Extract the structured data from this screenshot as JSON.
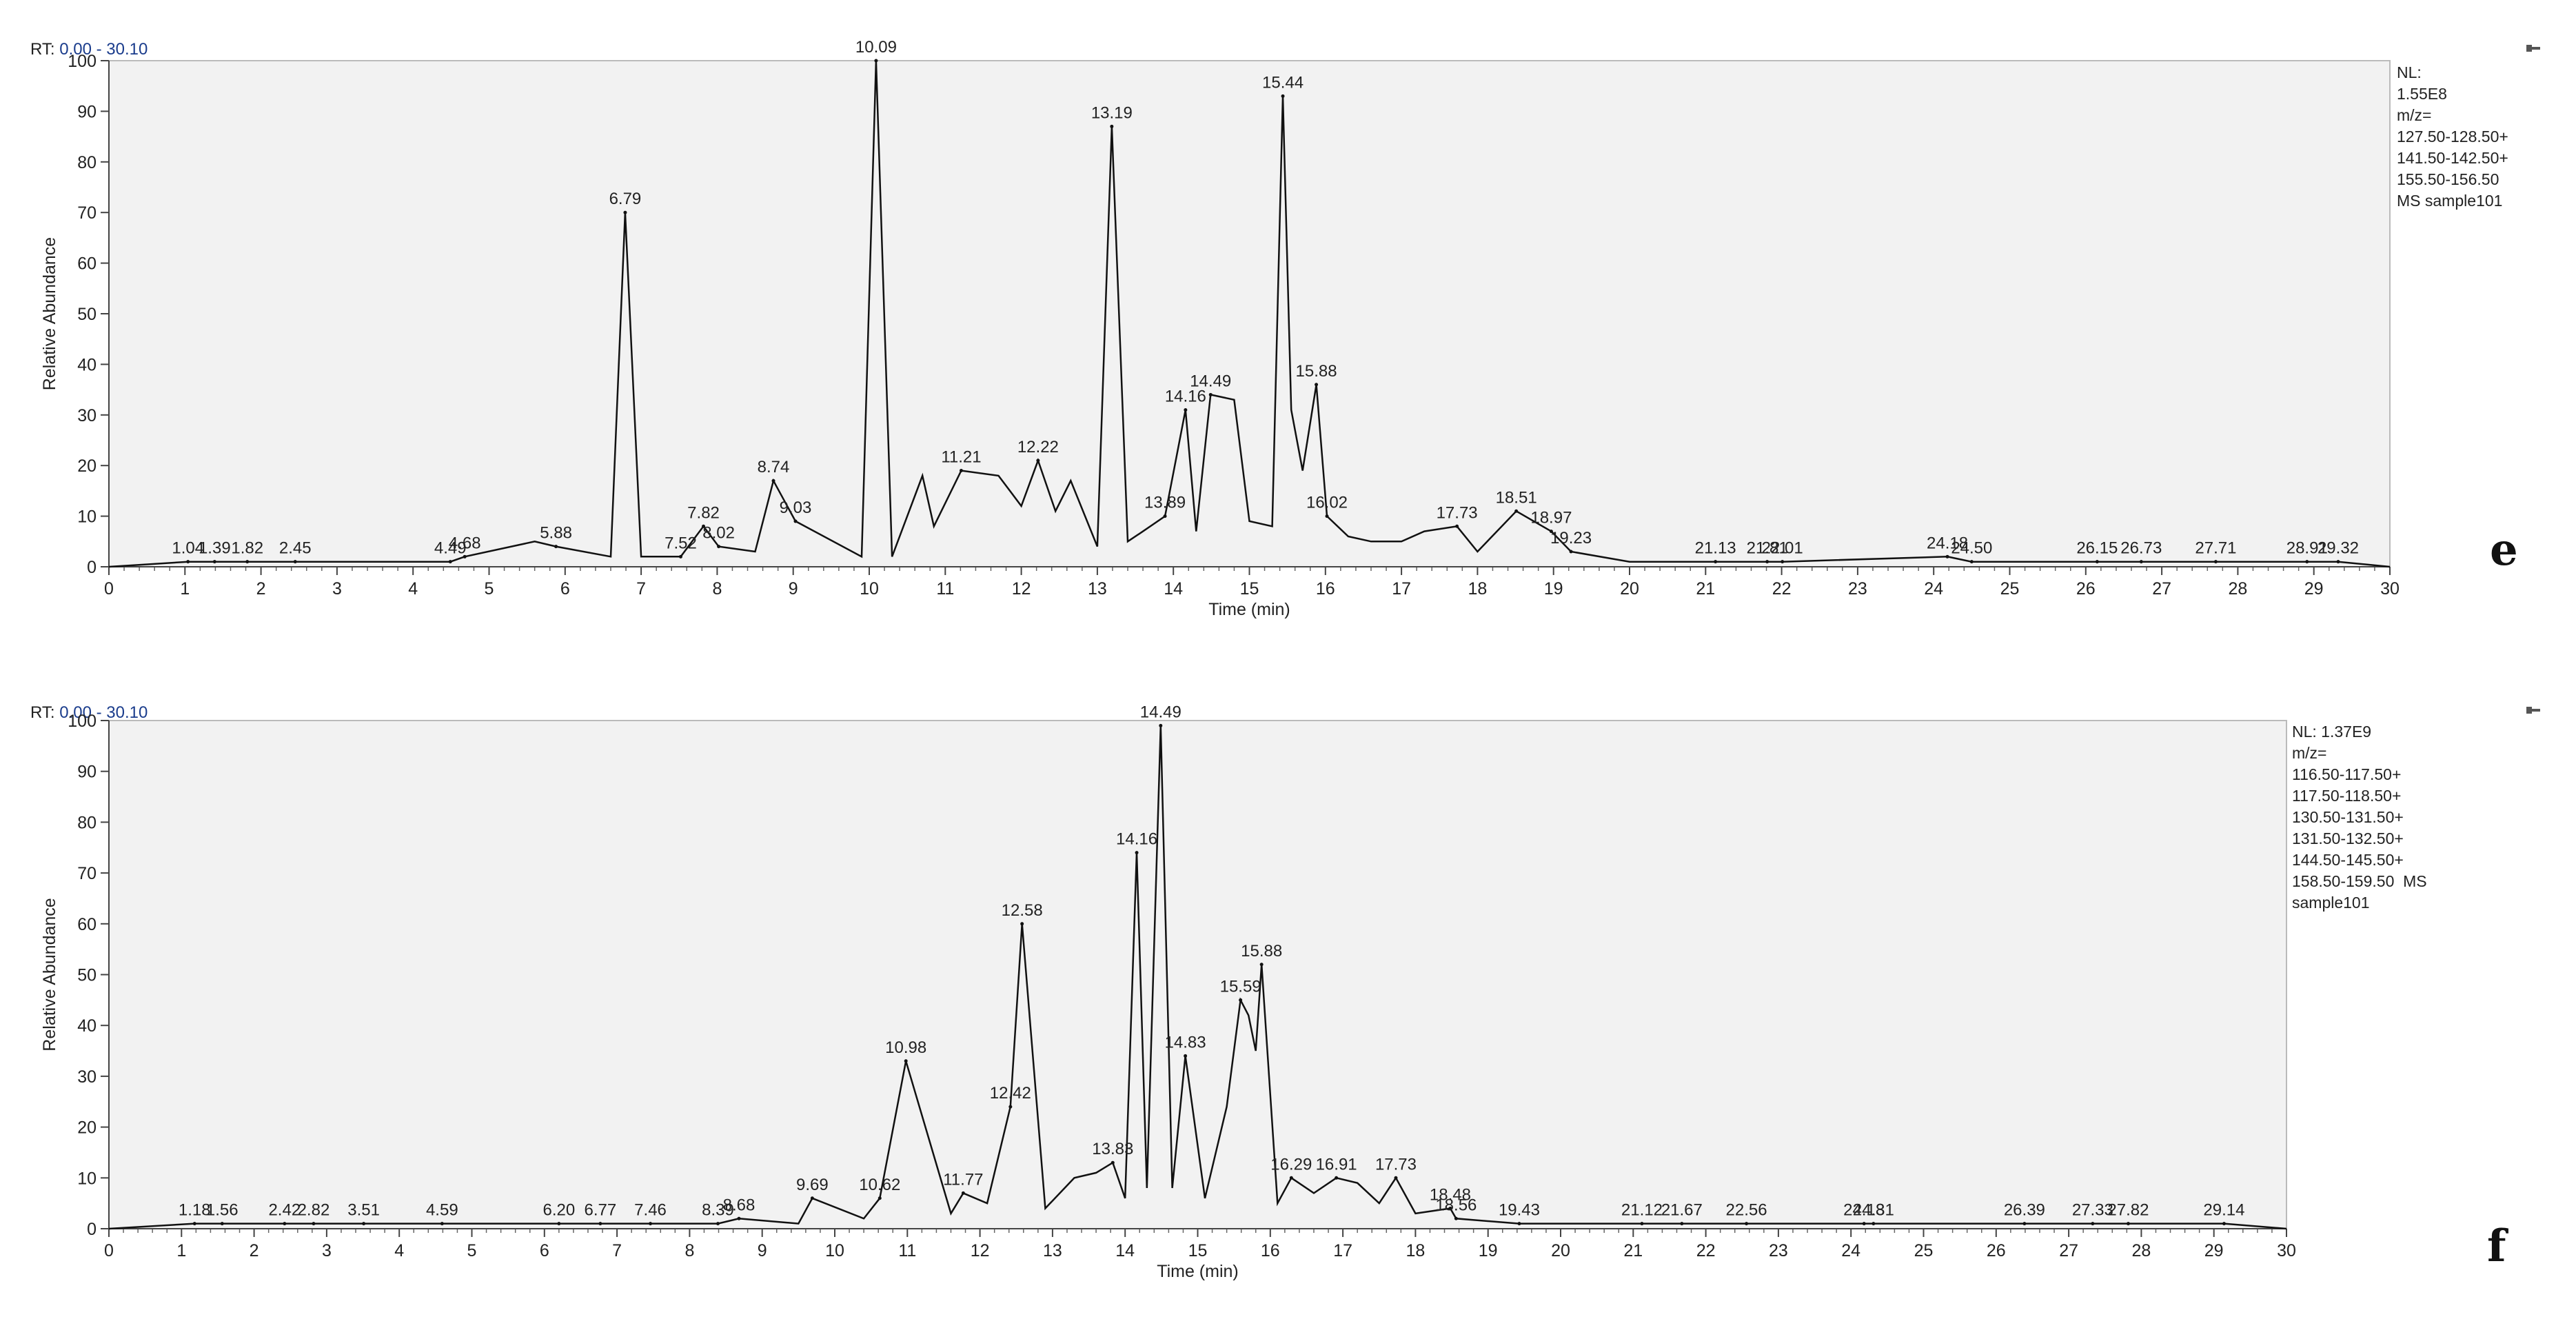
{
  "panels": [
    {
      "rt_label": "RT:",
      "rt_range": "0.00 - 30.10",
      "nl_lines": [
        "NL:",
        "1.55E8",
        "m/z=",
        "127.50-128.50+",
        "141.50-142.50+",
        "155.50-156.50",
        "MS sample101"
      ],
      "panel_tag": "e",
      "pin_icon": "pin-icon",
      "chart_data": {
        "type": "line",
        "xlabel": "Time (min)",
        "ylabel": "Relative Abundance",
        "xlim": [
          0,
          30
        ],
        "ylim": [
          0,
          100
        ],
        "xticks": [
          0,
          1,
          2,
          3,
          4,
          5,
          6,
          7,
          8,
          9,
          10,
          11,
          12,
          13,
          14,
          15,
          16,
          17,
          18,
          19,
          20,
          21,
          22,
          23,
          24,
          25,
          26,
          27,
          28,
          29,
          30
        ],
        "yticks": [
          0,
          10,
          20,
          30,
          40,
          50,
          60,
          70,
          80,
          90,
          100
        ],
        "grid": false,
        "series": [
          {
            "x": [
              0,
              1.04,
              1.39,
              1.82,
              2.45,
              4.49,
              4.68,
              5.6,
              5.88,
              6.6,
              6.79,
              7.0,
              7.52,
              7.82,
              8.02,
              8.5,
              8.74,
              9.03,
              9.9,
              10.09,
              10.3,
              10.7,
              10.85,
              11.21,
              11.7,
              11.85,
              12.0,
              12.22,
              12.45,
              12.65,
              13.0,
              13.19,
              13.4,
              13.6,
              13.89,
              14.16,
              14.3,
              14.49,
              14.8,
              15.0,
              15.3,
              15.44,
              15.55,
              15.7,
              15.88,
              16.02,
              16.3,
              16.6,
              17.0,
              17.3,
              17.73,
              18.0,
              18.51,
              18.97,
              19.23,
              20,
              21.13,
              21.81,
              22.01,
              24.18,
              24.5,
              26.15,
              26.73,
              27.71,
              28.91,
              29.32,
              30
            ],
            "values": [
              0,
              1,
              1,
              1,
              1,
              1,
              2,
              5,
              4,
              2,
              70,
              2,
              2,
              8,
              4,
              3,
              17,
              9,
              2,
              100,
              2,
              18,
              8,
              19,
              18,
              15,
              12,
              21,
              11,
              17,
              4,
              87,
              5,
              7,
              10,
              31,
              7,
              34,
              33,
              9,
              8,
              93,
              31,
              19,
              36,
              10,
              6,
              5,
              5,
              7,
              8,
              3,
              11,
              7,
              3,
              1,
              1,
              1,
              1,
              2,
              1,
              1,
              1,
              1,
              1,
              1,
              0
            ]
          }
        ],
        "peak_labels": [
          {
            "x": 1.04,
            "y": 1,
            "label": "1.04"
          },
          {
            "x": 1.39,
            "y": 1,
            "label": "1.39"
          },
          {
            "x": 1.82,
            "y": 1,
            "label": "1.82"
          },
          {
            "x": 2.45,
            "y": 1,
            "label": "2.45"
          },
          {
            "x": 4.49,
            "y": 1,
            "label": "4.49"
          },
          {
            "x": 4.68,
            "y": 2,
            "label": "4.68"
          },
          {
            "x": 5.88,
            "y": 4,
            "label": "5.88"
          },
          {
            "x": 6.79,
            "y": 70,
            "label": "6.79"
          },
          {
            "x": 7.52,
            "y": 2,
            "label": "7.52"
          },
          {
            "x": 7.82,
            "y": 8,
            "label": "7.82"
          },
          {
            "x": 8.02,
            "y": 4,
            "label": "8.02"
          },
          {
            "x": 8.74,
            "y": 17,
            "label": "8.74"
          },
          {
            "x": 9.03,
            "y": 9,
            "label": "9.03"
          },
          {
            "x": 10.09,
            "y": 100,
            "label": "10.09"
          },
          {
            "x": 11.21,
            "y": 19,
            "label": "11.21"
          },
          {
            "x": 12.22,
            "y": 21,
            "label": "12.22"
          },
          {
            "x": 13.19,
            "y": 87,
            "label": "13.19"
          },
          {
            "x": 13.89,
            "y": 10,
            "label": "13.89"
          },
          {
            "x": 14.16,
            "y": 31,
            "label": "14.16"
          },
          {
            "x": 14.49,
            "y": 34,
            "label": "14.49"
          },
          {
            "x": 15.44,
            "y": 93,
            "label": "15.44"
          },
          {
            "x": 15.88,
            "y": 36,
            "label": "15.88"
          },
          {
            "x": 16.02,
            "y": 10,
            "label": "16.02"
          },
          {
            "x": 17.73,
            "y": 8,
            "label": "17.73"
          },
          {
            "x": 18.51,
            "y": 11,
            "label": "18.51"
          },
          {
            "x": 18.97,
            "y": 7,
            "label": "18.97"
          },
          {
            "x": 19.23,
            "y": 3,
            "label": "19.23"
          },
          {
            "x": 21.13,
            "y": 1,
            "label": "21.13"
          },
          {
            "x": 21.81,
            "y": 1,
            "label": "21.81"
          },
          {
            "x": 22.01,
            "y": 1,
            "label": "22.01"
          },
          {
            "x": 24.18,
            "y": 2,
            "label": "24.18"
          },
          {
            "x": 24.5,
            "y": 1,
            "label": "24.50"
          },
          {
            "x": 26.15,
            "y": 1,
            "label": "26.15"
          },
          {
            "x": 26.73,
            "y": 1,
            "label": "26.73"
          },
          {
            "x": 27.71,
            "y": 1,
            "label": "27.71"
          },
          {
            "x": 28.91,
            "y": 1,
            "label": "28.91"
          },
          {
            "x": 29.32,
            "y": 1,
            "label": "29.32"
          }
        ]
      }
    },
    {
      "rt_label": "RT:",
      "rt_range": "0.00 - 30.10",
      "nl_lines": [
        "NL: 1.37E9",
        "m/z=",
        "116.50-117.50+",
        "117.50-118.50+",
        "130.50-131.50+",
        "131.50-132.50+",
        "144.50-145.50+",
        "158.50-159.50  MS",
        "sample101"
      ],
      "panel_tag": "f",
      "pin_icon": "pin-icon",
      "chart_data": {
        "type": "line",
        "xlabel": "Time (min)",
        "ylabel": "Relative Abundance",
        "xlim": [
          0,
          30
        ],
        "ylim": [
          0,
          100
        ],
        "xticks": [
          0,
          1,
          2,
          3,
          4,
          5,
          6,
          7,
          8,
          9,
          10,
          11,
          12,
          13,
          14,
          15,
          16,
          17,
          18,
          19,
          20,
          21,
          22,
          23,
          24,
          25,
          26,
          27,
          28,
          29,
          30
        ],
        "yticks": [
          0,
          10,
          20,
          30,
          40,
          50,
          60,
          70,
          80,
          90,
          100
        ],
        "grid": false,
        "series": [
          {
            "x": [
              0,
              1.18,
              1.56,
              2.42,
              2.82,
              3.51,
              4.59,
              6.2,
              6.77,
              7.46,
              8.39,
              8.68,
              9.5,
              9.69,
              10.4,
              10.62,
              10.98,
              11.6,
              11.77,
              12.1,
              12.42,
              12.58,
              12.9,
              13.3,
              13.6,
              13.83,
              14.0,
              14.16,
              14.3,
              14.49,
              14.65,
              14.83,
              15.1,
              15.4,
              15.59,
              15.7,
              15.8,
              15.88,
              16.1,
              16.29,
              16.6,
              16.91,
              17.2,
              17.5,
              17.73,
              18.0,
              18.48,
              18.56,
              19.43,
              20,
              21.12,
              21.67,
              22.56,
              24.18,
              24.31,
              26.39,
              27.33,
              27.82,
              29.14,
              30
            ],
            "values": [
              0,
              1,
              1,
              1,
              1,
              1,
              1,
              1,
              1,
              1,
              1,
              2,
              1,
              6,
              2,
              6,
              33,
              3,
              7,
              5,
              24,
              60,
              4,
              10,
              11,
              13,
              6,
              74,
              8,
              99,
              8,
              34,
              6,
              24,
              45,
              42,
              35,
              52,
              5,
              10,
              7,
              10,
              9,
              5,
              10,
              3,
              4,
              2,
              1,
              1,
              1,
              1,
              1,
              1,
              1,
              1,
              1,
              1,
              1,
              0
            ]
          }
        ],
        "peak_labels": [
          {
            "x": 1.18,
            "y": 1,
            "label": "1.18"
          },
          {
            "x": 1.56,
            "y": 1,
            "label": "1.56"
          },
          {
            "x": 2.42,
            "y": 1,
            "label": "2.42"
          },
          {
            "x": 2.82,
            "y": 1,
            "label": "2.82"
          },
          {
            "x": 3.51,
            "y": 1,
            "label": "3.51"
          },
          {
            "x": 4.59,
            "y": 1,
            "label": "4.59"
          },
          {
            "x": 6.2,
            "y": 1,
            "label": "6.20"
          },
          {
            "x": 6.77,
            "y": 1,
            "label": "6.77"
          },
          {
            "x": 7.46,
            "y": 1,
            "label": "7.46"
          },
          {
            "x": 8.39,
            "y": 1,
            "label": "8.39"
          },
          {
            "x": 8.68,
            "y": 2,
            "label": "8.68"
          },
          {
            "x": 9.69,
            "y": 6,
            "label": "9.69"
          },
          {
            "x": 10.62,
            "y": 6,
            "label": "10.62"
          },
          {
            "x": 10.98,
            "y": 33,
            "label": "10.98"
          },
          {
            "x": 11.77,
            "y": 7,
            "label": "11.77"
          },
          {
            "x": 12.42,
            "y": 24,
            "label": "12.42"
          },
          {
            "x": 12.58,
            "y": 60,
            "label": "12.58"
          },
          {
            "x": 13.83,
            "y": 13,
            "label": "13.83"
          },
          {
            "x": 14.16,
            "y": 74,
            "label": "14.16"
          },
          {
            "x": 14.49,
            "y": 99,
            "label": "14.49"
          },
          {
            "x": 14.83,
            "y": 34,
            "label": "14.83"
          },
          {
            "x": 15.59,
            "y": 45,
            "label": "15.59"
          },
          {
            "x": 15.88,
            "y": 52,
            "label": "15.88"
          },
          {
            "x": 16.29,
            "y": 10,
            "label": "16.29"
          },
          {
            "x": 16.91,
            "y": 10,
            "label": "16.91"
          },
          {
            "x": 17.73,
            "y": 10,
            "label": "17.73"
          },
          {
            "x": 18.48,
            "y": 4,
            "label": "18.48"
          },
          {
            "x": 18.56,
            "y": 2,
            "label": "18.56"
          },
          {
            "x": 19.43,
            "y": 1,
            "label": "19.43"
          },
          {
            "x": 21.12,
            "y": 1,
            "label": "21.12"
          },
          {
            "x": 21.67,
            "y": 1,
            "label": "21.67"
          },
          {
            "x": 22.56,
            "y": 1,
            "label": "22.56"
          },
          {
            "x": 24.18,
            "y": 1,
            "label": "24.18"
          },
          {
            "x": 24.31,
            "y": 1,
            "label": "24.31"
          },
          {
            "x": 26.39,
            "y": 1,
            "label": "26.39"
          },
          {
            "x": 27.33,
            "y": 1,
            "label": "27.33"
          },
          {
            "x": 27.82,
            "y": 1,
            "label": "27.82"
          },
          {
            "x": 29.14,
            "y": 1,
            "label": "29.14"
          }
        ]
      }
    }
  ],
  "colors": {
    "plot_bg": "#f2f2f2",
    "trace": "#111111",
    "rt_value": "#1a3c8c",
    "baseline_marker": "#3aa53a"
  }
}
